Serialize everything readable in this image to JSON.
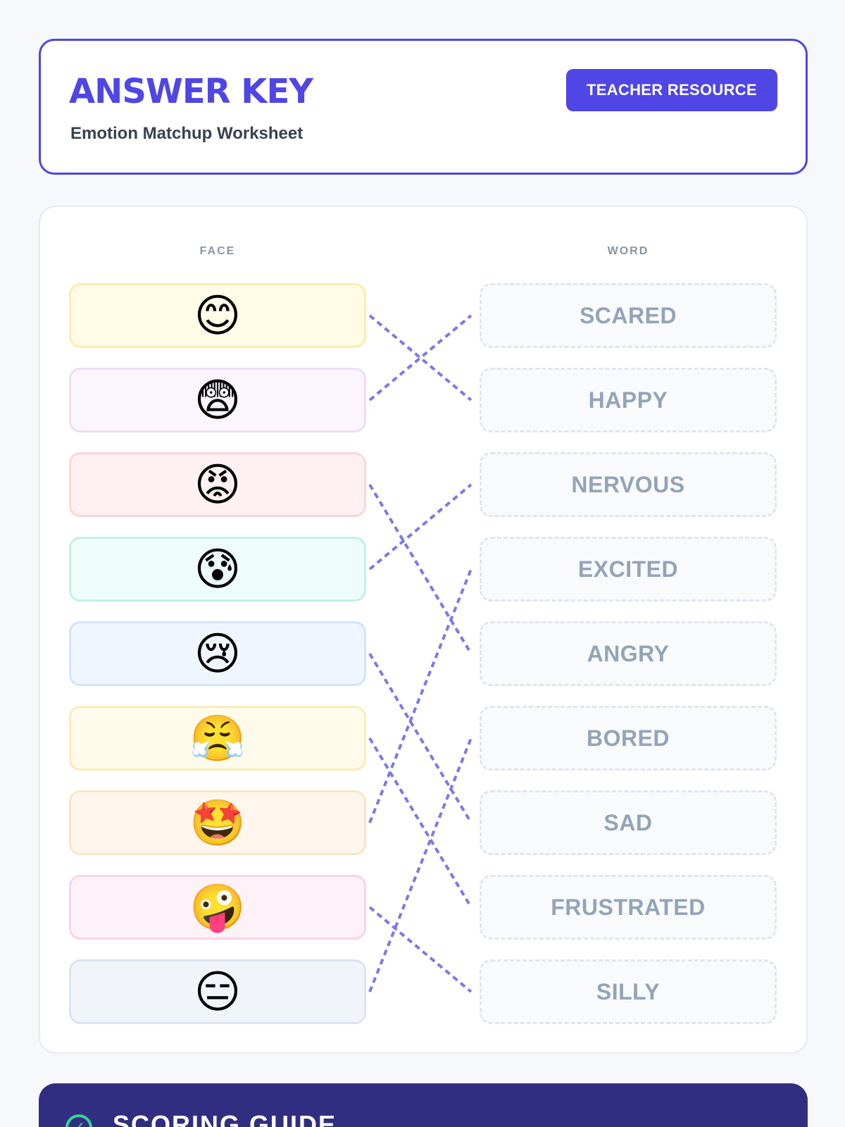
{
  "header": {
    "title": "ANSWER KEY",
    "subtitle": "Emotion Matchup Worksheet",
    "badge": "TEACHER RESOURCE"
  },
  "columns": {
    "face": "FACE",
    "word": "WORD"
  },
  "faces": [
    {
      "emoji": "😊",
      "icon": "smiling-face-icon",
      "bg": "#fffbe6",
      "border": "#fdecae"
    },
    {
      "emoji": "😨",
      "icon": "fearful-face-icon",
      "bg": "#faf5ff",
      "border": "#eddcfb"
    },
    {
      "emoji": "😡",
      "icon": "angry-face-icon",
      "bg": "#fff1f2",
      "border": "#fdd5d9"
    },
    {
      "emoji": "😰",
      "icon": "anxious-sweat-face-icon",
      "bg": "#effdfa",
      "border": "#c2f1e6"
    },
    {
      "emoji": "😢",
      "icon": "crying-face-icon",
      "bg": "#eff6ff",
      "border": "#d3e4fa"
    },
    {
      "emoji": "😤",
      "icon": "steam-nose-face-icon",
      "bg": "#fffbeb",
      "border": "#fcebb6"
    },
    {
      "emoji": "🤩",
      "icon": "star-struck-face-icon",
      "bg": "#fff7ed",
      "border": "#fde3c6"
    },
    {
      "emoji": "🤪",
      "icon": "zany-face-icon",
      "bg": "#fdf2f8",
      "border": "#f9d4e8"
    },
    {
      "emoji": "😑",
      "icon": "expressionless-face-icon",
      "bg": "#f1f5f9",
      "border": "#dde4ee"
    }
  ],
  "words": [
    "SCARED",
    "HAPPY",
    "NERVOUS",
    "EXCITED",
    "ANGRY",
    "BORED",
    "SAD",
    "FRUSTRATED",
    "SILLY"
  ],
  "matches": [
    1,
    0,
    4,
    2,
    6,
    7,
    3,
    8,
    5
  ],
  "line_color": "#7b78ec",
  "guide": {
    "title": "SCORING GUIDE",
    "icon": "check-circle-icon"
  }
}
